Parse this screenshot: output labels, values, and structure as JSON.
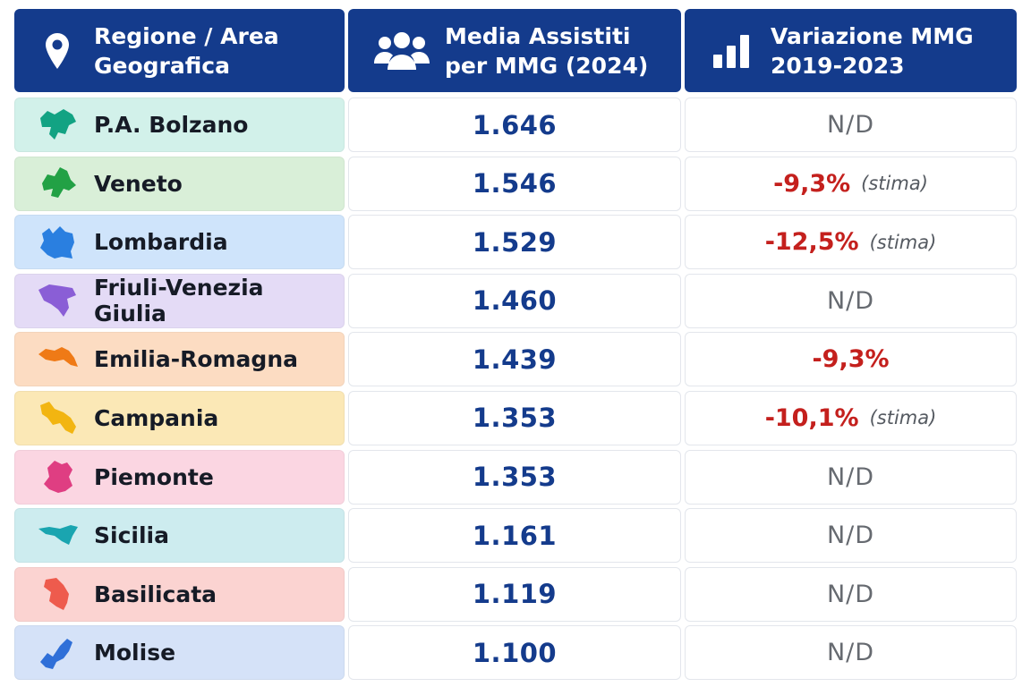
{
  "headers": {
    "region": "Regione / Area Geografica",
    "average": "Media Assistiti per MMG (2024)",
    "change": "Variazione MMG 2019-2023"
  },
  "header_icons": [
    "location-pin-icon",
    "users-icon",
    "bar-chart-icon"
  ],
  "rows": [
    {
      "region": "P.A. Bolzano",
      "average": "1.646",
      "change": "N/D",
      "note": "",
      "negative": false,
      "bg": "#d2f1ea",
      "icon_color": "#12a383",
      "icon": "region-map-icon"
    },
    {
      "region": "Veneto",
      "average": "1.546",
      "change": "-9,3%",
      "note": "(stima)",
      "negative": true,
      "bg": "#d9efd8",
      "icon_color": "#22a145",
      "icon": "region-map-icon"
    },
    {
      "region": "Lombardia",
      "average": "1.529",
      "change": "-12,5%",
      "note": "(stima)",
      "negative": true,
      "bg": "#cfe4fb",
      "icon_color": "#2a7fe0",
      "icon": "region-map-icon"
    },
    {
      "region": "Friuli-Venezia Giulia",
      "average": "1.460",
      "change": "N/D",
      "note": "",
      "negative": false,
      "bg": "#e4dbf6",
      "icon_color": "#8a5ed6",
      "icon": "region-map-icon"
    },
    {
      "region": "Emilia-Romagna",
      "average": "1.439",
      "change": "-9,3%",
      "note": "",
      "negative": true,
      "bg": "#fcdcc2",
      "icon_color": "#ef7a16",
      "icon": "region-map-icon"
    },
    {
      "region": "Campania",
      "average": "1.353",
      "change": "-10,1%",
      "note": "(stima)",
      "negative": true,
      "bg": "#fbe8b6",
      "icon_color": "#f2b511",
      "icon": "region-map-icon"
    },
    {
      "region": "Piemonte",
      "average": "1.353",
      "change": "N/D",
      "note": "",
      "negative": false,
      "bg": "#fbd6e2",
      "icon_color": "#df3e82",
      "icon": "region-map-icon"
    },
    {
      "region": "Sicilia",
      "average": "1.161",
      "change": "N/D",
      "note": "",
      "negative": false,
      "bg": "#cdecef",
      "icon_color": "#1aa5b0",
      "icon": "region-map-icon"
    },
    {
      "region": "Basilicata",
      "average": "1.119",
      "change": "N/D",
      "note": "",
      "negative": false,
      "bg": "#fbd3d1",
      "icon_color": "#ee5b4d",
      "icon": "region-map-icon"
    },
    {
      "region": "Molise",
      "average": "1.100",
      "change": "N/D",
      "note": "",
      "negative": false,
      "bg": "#d5e2f8",
      "icon_color": "#2f6fd8",
      "icon": "region-map-icon"
    }
  ],
  "chart_data": {
    "type": "table",
    "columns": [
      "Regione / Area Geografica",
      "Media Assistiti per MMG (2024)",
      "Variazione MMG 2019-2023"
    ],
    "rows": [
      [
        "P.A. Bolzano",
        "1.646",
        "N/D"
      ],
      [
        "Veneto",
        "1.546",
        "-9,3% (stima)"
      ],
      [
        "Lombardia",
        "1.529",
        "-12,5% (stima)"
      ],
      [
        "Friuli-Venezia Giulia",
        "1.460",
        "N/D"
      ],
      [
        "Emilia-Romagna",
        "1.439",
        "-9,3%"
      ],
      [
        "Campania",
        "1.353",
        "-10,1% (stima)"
      ],
      [
        "Piemonte",
        "1.353",
        "N/D"
      ],
      [
        "Sicilia",
        "1.161",
        "N/D"
      ],
      [
        "Basilicata",
        "1.119",
        "N/D"
      ],
      [
        "Molise",
        "1.100",
        "N/D"
      ]
    ]
  }
}
